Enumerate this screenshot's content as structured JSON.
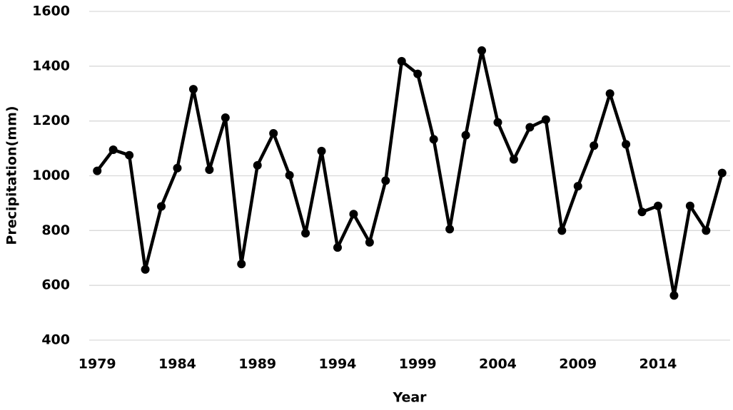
{
  "chart_data": {
    "type": "line",
    "x_label": "Year",
    "y_label": "Precipitation(mm)",
    "x": [
      1979,
      1980,
      1981,
      1982,
      1983,
      1984,
      1985,
      1986,
      1987,
      1988,
      1989,
      1990,
      1991,
      1992,
      1993,
      1994,
      1995,
      1996,
      1997,
      1998,
      1999,
      2000,
      2001,
      2002,
      2003,
      2004,
      2005,
      2006,
      2007,
      2008,
      2009,
      2010,
      2011,
      2012,
      2013,
      2014,
      2015,
      2016,
      2017,
      2018
    ],
    "series": [
      {
        "color": "#000000",
        "values": [
          1018,
          1095,
          1075,
          658,
          888,
          1028,
          1316,
          1022,
          1212,
          678,
          1038,
          1155,
          1002,
          790,
          1090,
          738,
          860,
          757,
          982,
          1418,
          1372,
          1133,
          805,
          1148,
          1457,
          1195,
          1060,
          1177,
          1205,
          800,
          962,
          1110,
          1300,
          1115,
          868,
          890,
          563,
          890,
          800,
          1010
        ]
      }
    ],
    "xlim": [
      1978.5,
      2018.5
    ],
    "xticks": [
      1979,
      1984,
      1989,
      1994,
      1999,
      2004,
      2009,
      2014
    ],
    "ylim": [
      400,
      1600
    ],
    "yticks": [
      400,
      600,
      800,
      1000,
      1200,
      1400,
      1600
    ],
    "grid": true
  }
}
